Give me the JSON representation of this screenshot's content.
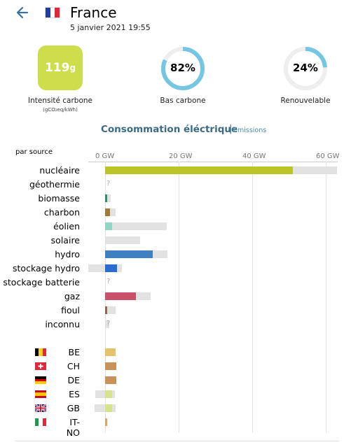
{
  "header": {
    "country": "France",
    "datetime": "5 janvier 2021 19:55"
  },
  "stats": {
    "carbon_intensity": {
      "value": "119",
      "unit": "g",
      "label": "Intensité carbone",
      "unit_label": "(gCO₂eq/kWh)"
    },
    "low_carbon": {
      "value": "82%",
      "fraction": 0.82,
      "label": "Bas carbone"
    },
    "renewable": {
      "value": "24%",
      "fraction": 0.24,
      "label": "Renouvelable"
    }
  },
  "tabs": {
    "active": "Consommation éléctrique",
    "separator": "|",
    "other": "Emissions"
  },
  "chart": {
    "section_label": "par source",
    "axis_ticks": [
      "0 GW",
      "20 GW",
      "40 GW",
      "60 GW"
    ],
    "sources": [
      {
        "label": "nucléaire",
        "value": 51,
        "capacity": 63,
        "color": "#bcc428"
      },
      {
        "label": "géothermie",
        "missing": "?"
      },
      {
        "label": "biomasse",
        "value": 0.6,
        "capacity": 1.5,
        "color": "#2f8e71"
      },
      {
        "label": "charbon",
        "value": 1.3,
        "capacity": 2.8,
        "color": "#a07c3b"
      },
      {
        "label": "éolien",
        "value": 1.9,
        "capacity": 16.8,
        "color": "#8fd6c6"
      },
      {
        "label": "solaire",
        "value": 0,
        "capacity": 9.5,
        "color": "#f0c040"
      },
      {
        "label": "hydro",
        "value": 12.9,
        "capacity": 16.9,
        "color": "#3e80c2"
      },
      {
        "label": "stockage hydro",
        "value": 3.2,
        "capacity": 4.6,
        "negative_capacity": 4.6,
        "color": "#2a6bd1"
      },
      {
        "label": "stockage batterie",
        "missing": "?"
      },
      {
        "label": "gaz",
        "value": 8.4,
        "capacity": 12.3,
        "color": "#c95068"
      },
      {
        "label": "fioul",
        "value": 0.5,
        "capacity": 2.9,
        "color": "#8a6a55"
      },
      {
        "label": "inconnu",
        "value": 0,
        "capacity": 1.2,
        "missing": "?",
        "color": "#999999"
      }
    ],
    "exchanges": [
      {
        "code": "BE",
        "value": 2.9,
        "color": "#e3c46a"
      },
      {
        "code": "CH",
        "value": 3.1,
        "color": "#c9925a"
      },
      {
        "code": "DE",
        "value": 3.1,
        "color": "#c9925a"
      },
      {
        "code": "ES",
        "value": 1.9,
        "capacity_pos": 2.7,
        "capacity_neg": 2.7,
        "color": "#d6e38a"
      },
      {
        "code": "GB",
        "value": 1.9,
        "capacity_pos": 2.9,
        "capacity_neg": 2.9,
        "color": "#d6e38a"
      },
      {
        "code": "IT-NO",
        "value": 0.6,
        "color": "#d9a95a"
      }
    ]
  }
}
